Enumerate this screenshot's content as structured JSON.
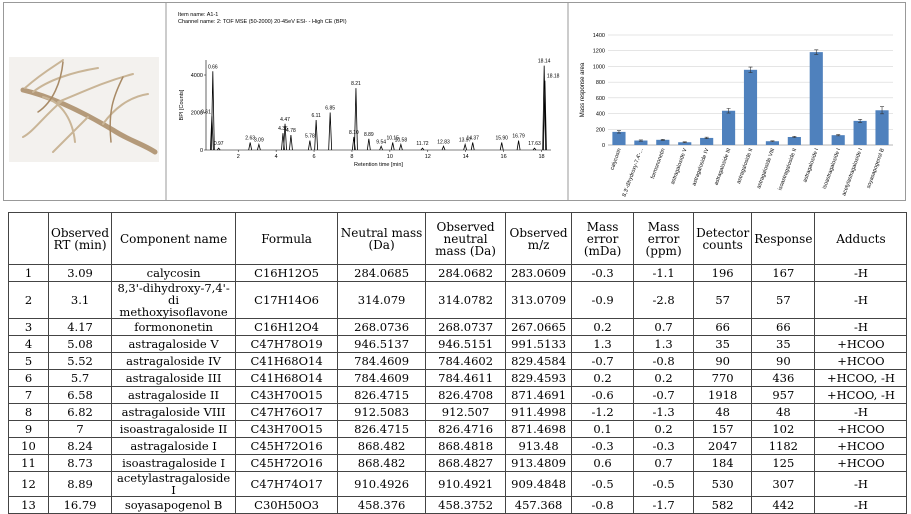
{
  "figure": {
    "chromatogram": {
      "type": "line",
      "title": "Item name: A1-1",
      "subtitle": "Channel name: 2: TOF MSE (50-2000) 20-45eV ESI- - High CE (BPI)",
      "xlabel": "Retention time [min]",
      "ylabel": "BPI [Counts]",
      "xlim": [
        0.3,
        18.5
      ],
      "ylim": [
        0,
        4800
      ],
      "xticks": [
        2,
        4,
        6,
        8,
        10,
        12,
        14,
        16,
        18
      ],
      "yticks": [
        0,
        2000,
        4000
      ],
      "color": "#000000",
      "x": [
        {
          "value": 0.61,
          "label": "0.61"
        },
        {
          "value": 0.66,
          "label": "0.66"
        },
        {
          "value": 0.97,
          "label": "0.97"
        },
        {
          "value": 2.63,
          "label": "2.63"
        },
        {
          "value": 3.09,
          "label": "3.09"
        },
        {
          "value": 4.36,
          "label": "4.36"
        },
        {
          "value": 4.47,
          "label": "4.47"
        },
        {
          "value": 4.78,
          "label": "4.78"
        },
        {
          "value": 5.78,
          "label": "5.78"
        },
        {
          "value": 6.11,
          "label": "6.11"
        },
        {
          "value": 6.85,
          "label": "6.85"
        },
        {
          "value": 8.1,
          "label": "8.10"
        },
        {
          "value": 8.21,
          "label": "8.21"
        },
        {
          "value": 8.89,
          "label": "8.89"
        },
        {
          "value": 9.54,
          "label": "9.54"
        },
        {
          "value": 10.15,
          "label": "10.15"
        },
        {
          "value": 10.58,
          "label": "10.58"
        },
        {
          "value": 11.72,
          "label": "11.72"
        },
        {
          "value": 12.83,
          "label": "12.83"
        },
        {
          "value": 13.97,
          "label": "13.97"
        },
        {
          "value": 14.37,
          "label": "14.37"
        },
        {
          "value": 15.9,
          "label": "15.90"
        },
        {
          "value": 16.79,
          "label": "16.79"
        },
        {
          "value": 17.63,
          "label": "17.63"
        },
        {
          "value": 18.14,
          "label": "18.14"
        },
        {
          "value": 18.18,
          "label": "18.18"
        }
      ],
      "values": [
        1800,
        4200,
        100,
        400,
        300,
        900,
        1400,
        800,
        500,
        1600,
        2000,
        700,
        3300,
        600,
        200,
        400,
        300,
        100,
        200,
        300,
        400,
        400,
        500,
        100,
        4500,
        3700
      ]
    },
    "bar_chart": {
      "type": "bar",
      "ylabel": "Mass response area",
      "categories": [
        "calycosin",
        "8,3'-dihydroxy-7,4'-...",
        "formononetin",
        "astragaloside V",
        "astragaloside IV",
        "astragaloside III",
        "astragaloside II",
        "astragaloside VIII",
        "isoastragaloside II",
        "astragaloside I",
        "isoastragaloside I",
        "acetylastragaloside I",
        "soyasapogenol B"
      ],
      "values": [
        167,
        57,
        66,
        35,
        90,
        436,
        957,
        48,
        102,
        1182,
        125,
        307,
        442
      ],
      "errors": [
        15,
        8,
        6,
        5,
        10,
        30,
        35,
        6,
        8,
        30,
        8,
        20,
        45
      ],
      "color": "#4f81bd",
      "ylim": [
        0,
        1400
      ],
      "yticks": [
        0,
        200,
        400,
        600,
        800,
        1000,
        1200,
        1400
      ],
      "grid": true
    }
  },
  "table": {
    "headers": [
      "",
      "Observed RT (min)",
      "Component name",
      "Formula",
      "Neutral mass (Da)",
      "Observed neutral mass (Da)",
      "Observed m/z",
      "Mass error (mDa)",
      "Mass error (ppm)",
      "Detector counts",
      "Response",
      "Adducts"
    ],
    "rows": [
      [
        "1",
        "3.09",
        "calycosin",
        "C16H12O5",
        "284.0685",
        "284.0682",
        "283.0609",
        "-0.3",
        "-1.1",
        "196",
        "167",
        "-H"
      ],
      [
        "2",
        "3.1",
        "8,3'-dihydroxy-7,4'-di methoxyisoflavone",
        "C17H14O6",
        "314.079",
        "314.0782",
        "313.0709",
        "-0.9",
        "-2.8",
        "57",
        "57",
        "-H"
      ],
      [
        "3",
        "4.17",
        "formononetin",
        "C16H12O4",
        "268.0736",
        "268.0737",
        "267.0665",
        "0.2",
        "0.7",
        "66",
        "66",
        "-H"
      ],
      [
        "4",
        "5.08",
        "astragaloside V",
        "C47H78O19",
        "946.5137",
        "946.5151",
        "991.5133",
        "1.3",
        "1.3",
        "35",
        "35",
        "+HCOO"
      ],
      [
        "5",
        "5.52",
        "astragaloside IV",
        "C41H68O14",
        "784.4609",
        "784.4602",
        "829.4584",
        "-0.7",
        "-0.8",
        "90",
        "90",
        "+HCOO"
      ],
      [
        "6",
        "5.7",
        "astragaloside III",
        "C41H68O14",
        "784.4609",
        "784.4611",
        "829.4593",
        "0.2",
        "0.2",
        "770",
        "436",
        "+HCOO, -H"
      ],
      [
        "7",
        "6.58",
        "astragaloside II",
        "C43H70O15",
        "826.4715",
        "826.4708",
        "871.4691",
        "-0.6",
        "-0.7",
        "1918",
        "957",
        "+HCOO, -H"
      ],
      [
        "8",
        "6.82",
        "astragaloside VIII",
        "C47H76O17",
        "912.5083",
        "912.507",
        "911.4998",
        "-1.2",
        "-1.3",
        "48",
        "48",
        "-H"
      ],
      [
        "9",
        "7",
        "isoastragaloside II",
        "C43H70O15",
        "826.4715",
        "826.4716",
        "871.4698",
        "0.1",
        "0.2",
        "157",
        "102",
        "+HCOO"
      ],
      [
        "10",
        "8.24",
        "astragaloside I",
        "C45H72O16",
        "868.482",
        "868.4818",
        "913.48",
        "-0.3",
        "-0.3",
        "2047",
        "1182",
        "+HCOO"
      ],
      [
        "11",
        "8.73",
        "isoastragaloside I",
        "C45H72O16",
        "868.482",
        "868.4827",
        "913.4809",
        "0.6",
        "0.7",
        "184",
        "125",
        "+HCOO"
      ],
      [
        "12",
        "8.89",
        "acetylastragaloside I",
        "C47H74O17",
        "910.4926",
        "910.4921",
        "909.4848",
        "-0.5",
        "-0.5",
        "530",
        "307",
        "-H"
      ],
      [
        "13",
        "16.79",
        "soyasapogenol B",
        "C30H50O3",
        "458.376",
        "458.3752",
        "457.368",
        "-0.8",
        "-1.7",
        "582",
        "442",
        "-H"
      ]
    ]
  }
}
